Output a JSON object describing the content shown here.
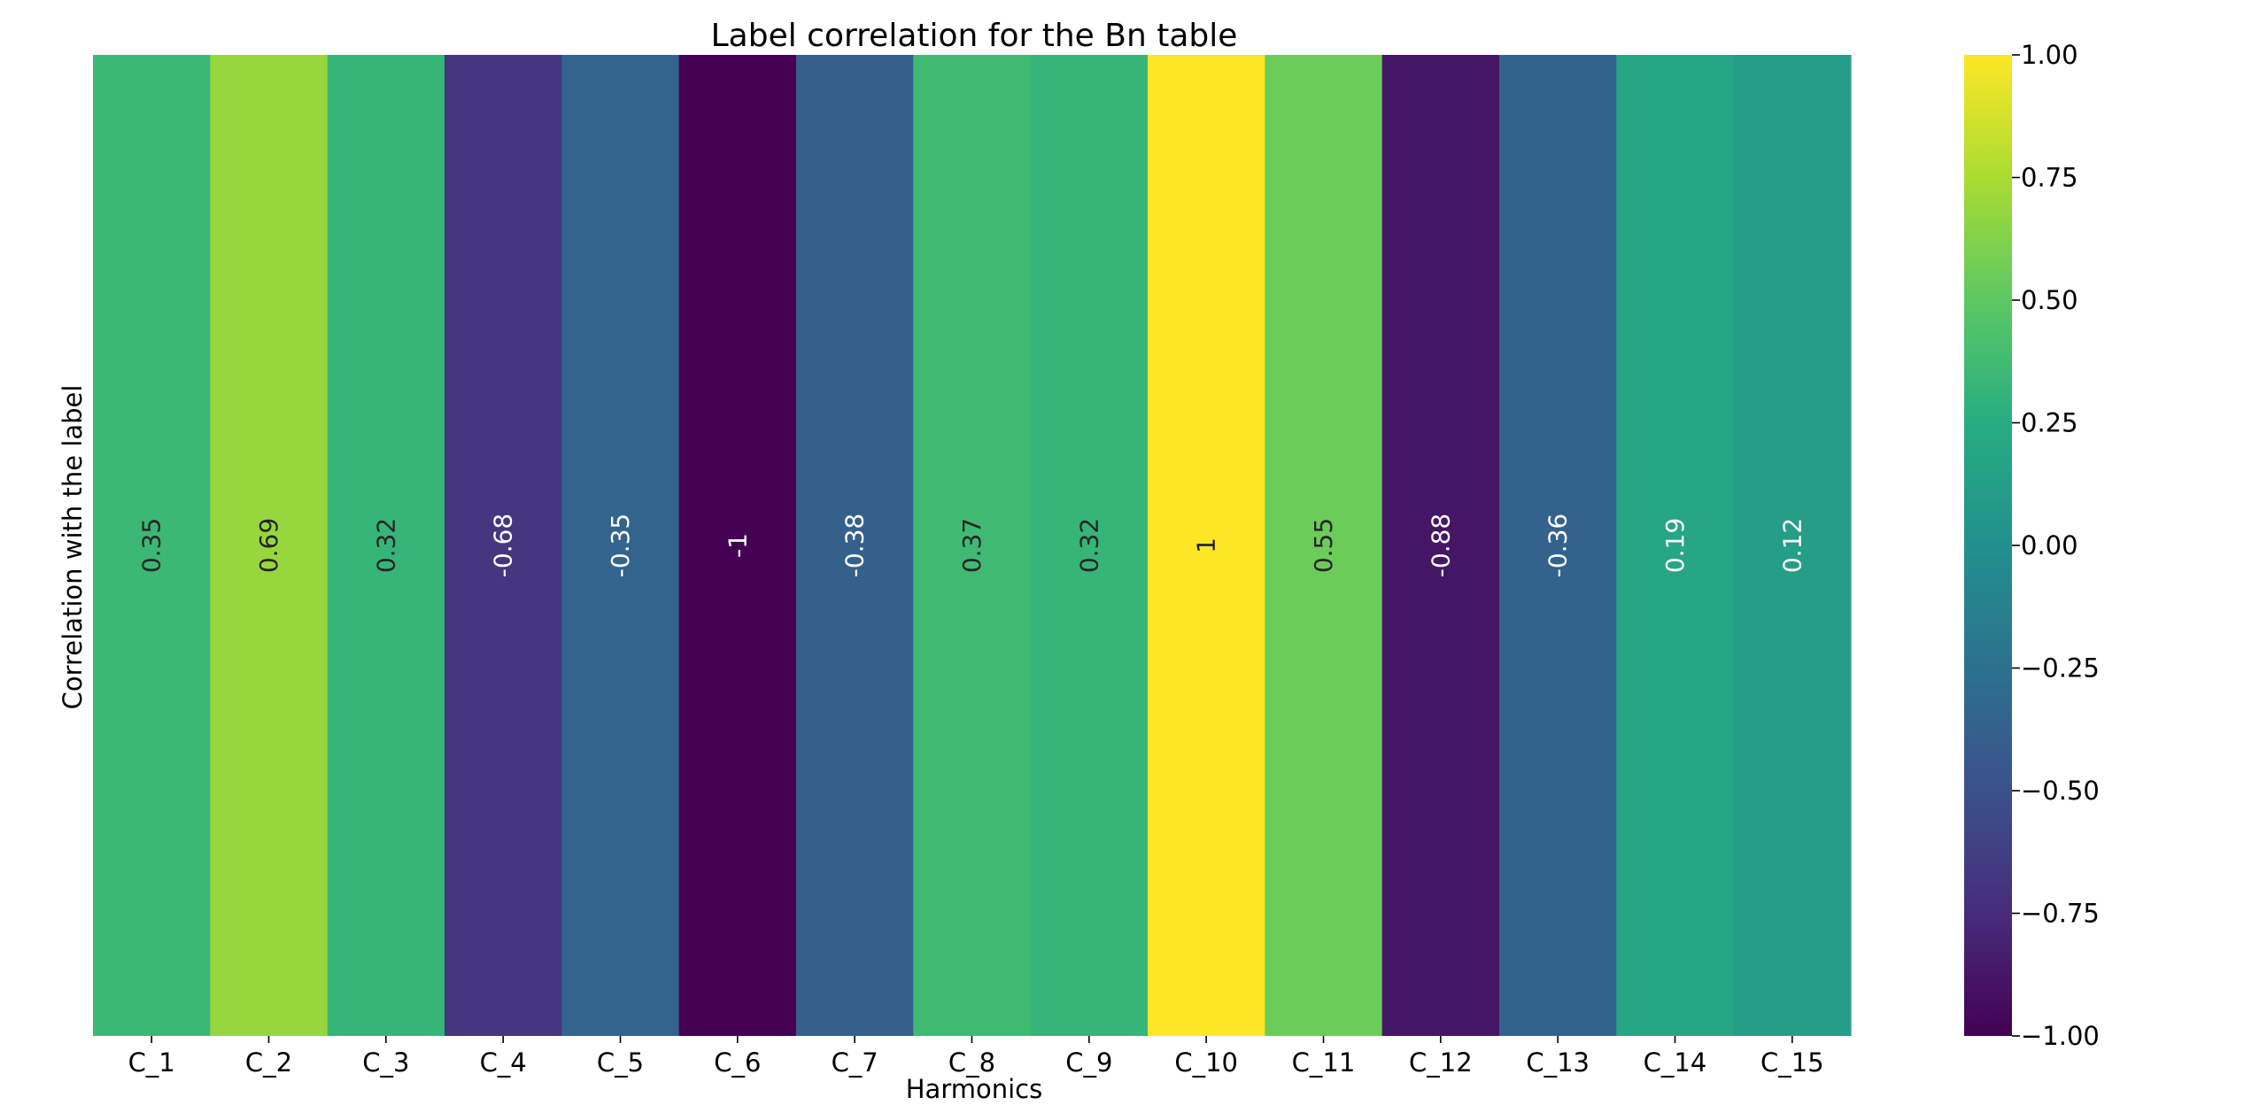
{
  "chart_data": {
    "type": "heatmap",
    "title": "Label correlation for the Bn table",
    "xlabel": "Harmonics",
    "ylabel": "Correlation with the label",
    "categories": [
      "C_1",
      "C_2",
      "C_3",
      "C_4",
      "C_5",
      "C_6",
      "C_7",
      "C_8",
      "C_9",
      "C_10",
      "C_11",
      "C_12",
      "C_13",
      "C_14",
      "C_15"
    ],
    "values": [
      0.35,
      0.69,
      0.32,
      -0.68,
      -0.35,
      -1,
      -0.38,
      0.37,
      0.32,
      1,
      0.55,
      -0.88,
      -0.36,
      0.19,
      0.12
    ],
    "value_labels": [
      "0.35",
      "0.69",
      "0.32",
      "-0.68",
      "-0.35",
      "-1",
      "-0.38",
      "0.37",
      "0.32",
      "1",
      "0.55",
      "-0.88",
      "-0.36",
      "0.19",
      "0.12"
    ],
    "colormap": "viridis",
    "vlim": [
      -1,
      1
    ],
    "colorbar_ticks": [
      1.0,
      0.75,
      0.5,
      0.25,
      0.0,
      -0.25,
      -0.5,
      -0.75,
      -1.0
    ],
    "colorbar_tick_labels": [
      "1.00",
      "0.75",
      "0.50",
      "0.25",
      "0.00",
      "−0.25",
      "−0.50",
      "−0.75",
      "−1.00"
    ],
    "grid": false
  }
}
